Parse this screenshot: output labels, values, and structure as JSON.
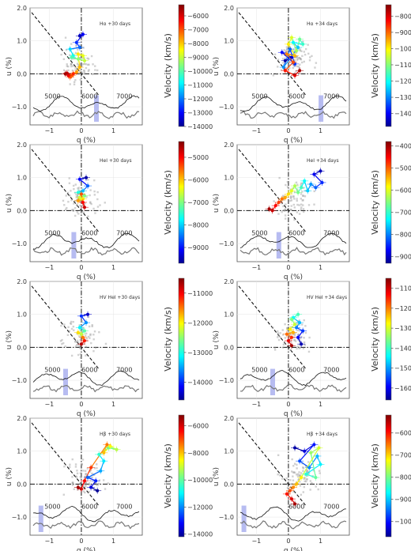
{
  "chart_data": [
    {
      "type": "scatter",
      "title": "Hα +30 days",
      "xlabel": "q (%)",
      "ylabel": "u (%)",
      "cbar_label": "Velocity (km/s)",
      "xlim": [
        -1.6,
        1.9
      ],
      "ylim": [
        -1.55,
        2.0
      ],
      "x_ticks": [
        "−1",
        "0",
        "1"
      ],
      "y_ticks": [
        "2.0",
        "1.0",
        "0.0",
        "−1.0"
      ],
      "cbar_range": [
        -14000,
        -5200
      ],
      "cbar_ticks": [
        "−6000",
        "−7000",
        "−8000",
        "−9000",
        "−10000",
        "−11000",
        "−12000",
        "−13000",
        "−14000"
      ],
      "wavelength_labels": [
        "5000",
        "6000",
        "7000"
      ],
      "dominant_axis_slope": -1.2,
      "band_position": 0.6,
      "cluster_center": [
        -0.1,
        0.3
      ],
      "points": [
        {
          "q": -0.05,
          "u": 1.15,
          "v": -13500
        },
        {
          "q": 0.05,
          "u": 1.2,
          "v": -13000
        },
        {
          "q": -0.15,
          "u": 0.95,
          "v": -12500
        },
        {
          "q": -0.05,
          "u": 0.8,
          "v": -12000
        },
        {
          "q": -0.35,
          "u": 0.75,
          "v": -11000
        },
        {
          "q": -0.25,
          "u": 0.55,
          "v": -10500
        },
        {
          "q": -0.3,
          "u": 0.5,
          "v": -10000
        },
        {
          "q": -0.1,
          "u": 0.45,
          "v": -9500
        },
        {
          "q": 0.1,
          "u": 0.4,
          "v": -9000
        },
        {
          "q": 0.05,
          "u": 0.55,
          "v": -8700
        },
        {
          "q": -0.1,
          "u": 0.6,
          "v": -8300
        },
        {
          "q": -0.05,
          "u": 0.2,
          "v": -7900
        },
        {
          "q": -0.15,
          "u": 0.05,
          "v": -7600
        },
        {
          "q": -0.3,
          "u": -0.05,
          "v": -7300
        },
        {
          "q": -0.35,
          "u": -0.1,
          "v": -7000
        },
        {
          "q": -0.25,
          "u": 0.0,
          "v": -6600
        },
        {
          "q": -0.4,
          "u": -0.05,
          "v": -6200
        },
        {
          "q": -0.45,
          "u": 0.02,
          "v": -5800
        },
        {
          "q": -0.5,
          "u": 0.0,
          "v": -5500
        }
      ]
    },
    {
      "type": "scatter",
      "title": "Hα +34 days",
      "xlabel": "q (%)",
      "ylabel": "u (%)",
      "cbar_label": "Velocity (km/s)",
      "xlim": [
        -1.6,
        1.9
      ],
      "ylim": [
        -1.55,
        2.0
      ],
      "x_ticks": [
        "−1",
        "0",
        "1"
      ],
      "y_ticks": [
        "2.0",
        "1.0",
        "0.0",
        "−1.0"
      ],
      "cbar_range": [
        -14800,
        -7300
      ],
      "cbar_ticks": [
        "−8000",
        "−9000",
        "−10000",
        "−11000",
        "−12000",
        "−13000",
        "−14000"
      ],
      "wavelength_labels": [
        "5000",
        "6000",
        "7000"
      ],
      "dominant_axis_slope": -1.2,
      "band_position": 0.77,
      "cluster_center": [
        0.15,
        0.45
      ],
      "points": [
        {
          "q": -0.1,
          "u": 0.4,
          "v": -14500
        },
        {
          "q": 0.1,
          "u": 0.5,
          "v": -14200
        },
        {
          "q": -0.2,
          "u": 0.65,
          "v": -13800
        },
        {
          "q": 0.2,
          "u": 0.3,
          "v": -13500
        },
        {
          "q": 0.05,
          "u": 0.75,
          "v": -13100
        },
        {
          "q": -0.15,
          "u": 0.2,
          "v": -12800
        },
        {
          "q": 0.3,
          "u": 0.8,
          "v": -12400
        },
        {
          "q": 0.15,
          "u": 0.95,
          "v": -12000
        },
        {
          "q": 0.45,
          "u": 0.9,
          "v": -11600
        },
        {
          "q": 0.35,
          "u": 1.05,
          "v": -11200
        },
        {
          "q": 0.25,
          "u": 0.7,
          "v": -10800
        },
        {
          "q": 0.1,
          "u": 1.1,
          "v": -10400
        },
        {
          "q": 0.0,
          "u": 0.9,
          "v": -10000
        },
        {
          "q": 0.2,
          "u": 0.55,
          "v": -9600
        },
        {
          "q": -0.05,
          "u": 0.6,
          "v": -9200
        },
        {
          "q": 0.15,
          "u": 0.35,
          "v": -8800
        },
        {
          "q": -0.1,
          "u": 0.1,
          "v": -8400
        },
        {
          "q": 0.2,
          "u": -0.05,
          "v": -8000
        },
        {
          "q": 0.35,
          "u": 0.1,
          "v": -7600
        }
      ]
    },
    {
      "type": "scatter",
      "title": "HeI +30 days",
      "xlabel": "q (%)",
      "ylabel": "u (%)",
      "cbar_label": "Velocity (km/s)",
      "xlim": [
        -1.6,
        1.9
      ],
      "ylim": [
        -1.55,
        2.0
      ],
      "x_ticks": [
        "−1",
        "0",
        "1"
      ],
      "y_ticks": [
        "2.0",
        "1.0",
        "0.0",
        "−1.0"
      ],
      "cbar_range": [
        -9700,
        -4300
      ],
      "cbar_ticks": [
        "−5000",
        "−6000",
        "−7000",
        "−8000",
        "−9000"
      ],
      "wavelength_labels": [
        "5000",
        "6000",
        "7000"
      ],
      "dominant_axis_slope": -1.2,
      "band_position": 0.38,
      "cluster_center": [
        0.0,
        0.3
      ],
      "points": [
        {
          "q": 0.15,
          "u": 1.0,
          "v": -9500
        },
        {
          "q": -0.05,
          "u": 0.95,
          "v": -9000
        },
        {
          "q": 0.2,
          "u": 0.75,
          "v": -8500
        },
        {
          "q": 0.05,
          "u": 0.6,
          "v": -8000
        },
        {
          "q": -0.1,
          "u": 0.55,
          "v": -7500
        },
        {
          "q": 0.1,
          "u": 0.45,
          "v": -7000
        },
        {
          "q": -0.05,
          "u": 0.4,
          "v": -6600
        },
        {
          "q": 0.05,
          "u": 0.35,
          "v": -6200
        },
        {
          "q": -0.1,
          "u": 0.3,
          "v": -5800
        },
        {
          "q": 0.0,
          "u": 0.5,
          "v": -5400
        },
        {
          "q": 0.05,
          "u": 0.25,
          "v": -5000
        },
        {
          "q": 0.1,
          "u": 0.1,
          "v": -4700
        }
      ]
    },
    {
      "type": "scatter",
      "title": "HeI +34 days",
      "xlabel": "q (%)",
      "ylabel": "u (%)",
      "cbar_label": "Velocity (km/s)",
      "xlim": [
        -1.6,
        1.9
      ],
      "ylim": [
        -1.55,
        2.0
      ],
      "x_ticks": [
        "−1",
        "0",
        "1"
      ],
      "y_ticks": [
        "2.0",
        "1.0",
        "0.0",
        "−1.0"
      ],
      "cbar_range": [
        -9300,
        -3800
      ],
      "cbar_ticks": [
        "−4000",
        "−5000",
        "−6000",
        "−7000",
        "−8000",
        "−9000"
      ],
      "wavelength_labels": [
        "5000",
        "6000",
        "7000"
      ],
      "dominant_axis_slope": -1.2,
      "band_position": 0.36,
      "cluster_center": [
        0.2,
        0.4
      ],
      "points": [
        {
          "q": 1.0,
          "u": 1.2,
          "v": -9000
        },
        {
          "q": 0.8,
          "u": 1.1,
          "v": -8700
        },
        {
          "q": 1.05,
          "u": 0.85,
          "v": -8400
        },
        {
          "q": 0.85,
          "u": 0.7,
          "v": -8100
        },
        {
          "q": 0.7,
          "u": 0.8,
          "v": -7800
        },
        {
          "q": 0.6,
          "u": 0.6,
          "v": -7500
        },
        {
          "q": 0.5,
          "u": 0.9,
          "v": -7200
        },
        {
          "q": 0.4,
          "u": 0.7,
          "v": -6900
        },
        {
          "q": 0.3,
          "u": 0.55,
          "v": -6600
        },
        {
          "q": 0.2,
          "u": 0.75,
          "v": -6300
        },
        {
          "q": 0.1,
          "u": 0.6,
          "v": -6000
        },
        {
          "q": 0.0,
          "u": 0.5,
          "v": -5700
        },
        {
          "q": -0.1,
          "u": 0.4,
          "v": -5400
        },
        {
          "q": -0.2,
          "u": 0.35,
          "v": -5100
        },
        {
          "q": -0.3,
          "u": 0.25,
          "v": -4800
        },
        {
          "q": -0.4,
          "u": 0.15,
          "v": -4500
        },
        {
          "q": -0.5,
          "u": 0.0,
          "v": -4200
        },
        {
          "q": -0.6,
          "u": 0.05,
          "v": -4000
        }
      ]
    },
    {
      "type": "scatter",
      "title": "HV HeI +30 days",
      "xlabel": "q (%)",
      "ylabel": "u (%)",
      "cbar_label": "Velocity (km/s)",
      "xlim": [
        -1.6,
        1.9
      ],
      "ylim": [
        -1.55,
        2.0
      ],
      "x_ticks": [
        "−1",
        "0",
        "1"
      ],
      "y_ticks": [
        "2.0",
        "1.0",
        "0.0",
        "−1.0"
      ],
      "cbar_range": [
        -14600,
        -10500
      ],
      "cbar_ticks": [
        "−11000",
        "−12000",
        "−13000",
        "−14000"
      ],
      "wavelength_labels": [
        "5000",
        "6000",
        "7000"
      ],
      "dominant_axis_slope": -1.2,
      "band_position": 0.3,
      "cluster_center": [
        0.0,
        0.3
      ],
      "points": [
        {
          "q": 0.2,
          "u": 1.0,
          "v": -14300
        },
        {
          "q": 0.0,
          "u": 0.95,
          "v": -13900
        },
        {
          "q": 0.15,
          "u": 0.75,
          "v": -13500
        },
        {
          "q": -0.05,
          "u": 0.6,
          "v": -13100
        },
        {
          "q": 0.1,
          "u": 0.5,
          "v": -12700
        },
        {
          "q": 0.0,
          "u": 0.4,
          "v": -12300
        },
        {
          "q": -0.1,
          "u": 0.45,
          "v": -11900
        },
        {
          "q": 0.05,
          "u": 0.3,
          "v": -11500
        },
        {
          "q": 0.1,
          "u": 0.2,
          "v": -11100
        },
        {
          "q": 0.0,
          "u": 0.1,
          "v": -10700
        }
      ]
    },
    {
      "type": "scatter",
      "title": "HV HeI +34 days",
      "xlabel": "q (%)",
      "ylabel": "u (%)",
      "cbar_label": "Velocity (km/s)",
      "xlim": [
        -1.6,
        1.9
      ],
      "ylim": [
        -1.55,
        2.0
      ],
      "x_ticks": [
        "−1",
        "0",
        "1"
      ],
      "y_ticks": [
        "2.0",
        "1.0",
        "0.0",
        "−1.0"
      ],
      "cbar_range": [
        -16600,
        -10500
      ],
      "cbar_ticks": [
        "−11000",
        "−12000",
        "−13000",
        "−14000",
        "−15000",
        "−16000"
      ],
      "wavelength_labels": [
        "5000",
        "6000",
        "7000"
      ],
      "dominant_axis_slope": -1.2,
      "band_position": 0.3,
      "cluster_center": [
        0.15,
        0.35
      ],
      "points": [
        {
          "q": 0.4,
          "u": 0.1,
          "v": -16300
        },
        {
          "q": 0.3,
          "u": 0.3,
          "v": -15900
        },
        {
          "q": 0.45,
          "u": 0.5,
          "v": -15500
        },
        {
          "q": 0.25,
          "u": 0.6,
          "v": -15100
        },
        {
          "q": 0.35,
          "u": 0.75,
          "v": -14700
        },
        {
          "q": 0.15,
          "u": 0.9,
          "v": -14300
        },
        {
          "q": 0.3,
          "u": 1.0,
          "v": -13900
        },
        {
          "q": 0.1,
          "u": 0.85,
          "v": -13500
        },
        {
          "q": 0.2,
          "u": 0.7,
          "v": -13100
        },
        {
          "q": 0.05,
          "u": 0.55,
          "v": -12700
        },
        {
          "q": 0.15,
          "u": 0.45,
          "v": -12300
        },
        {
          "q": -0.05,
          "u": 0.4,
          "v": -11900
        },
        {
          "q": 0.1,
          "u": 0.3,
          "v": -11500
        },
        {
          "q": 0.0,
          "u": 0.2,
          "v": -11100
        },
        {
          "q": 0.1,
          "u": 0.05,
          "v": -10700
        }
      ]
    },
    {
      "type": "scatter",
      "title": "Hβ +30 days",
      "xlabel": "q (%)",
      "ylabel": "u (%)",
      "cbar_label": "Velocity (km/s)",
      "xlim": [
        -1.6,
        1.9
      ],
      "ylim": [
        -1.55,
        2.0
      ],
      "x_ticks": [
        "−1",
        "0",
        "1"
      ],
      "y_ticks": [
        "2.0",
        "1.0",
        "0.0",
        "−1.0"
      ],
      "cbar_range": [
        -14200,
        -5200
      ],
      "cbar_ticks": [
        "−6000",
        "−8000",
        "−10000",
        "−12000",
        "−14000"
      ],
      "wavelength_labels": [
        "5000",
        "6000",
        "7000"
      ],
      "dominant_axis_slope": -1.2,
      "band_position": 0.06,
      "cluster_center": [
        0.1,
        0.2
      ],
      "points": [
        {
          "q": 0.5,
          "u": -0.2,
          "v": -14000
        },
        {
          "q": 0.3,
          "u": -0.1,
          "v": -13400
        },
        {
          "q": 0.45,
          "u": 0.1,
          "v": -12800
        },
        {
          "q": 0.2,
          "u": 0.2,
          "v": -12200
        },
        {
          "q": 0.6,
          "u": 0.4,
          "v": -11600
        },
        {
          "q": 0.7,
          "u": 0.7,
          "v": -11000
        },
        {
          "q": 0.55,
          "u": 0.9,
          "v": -10400
        },
        {
          "q": 0.85,
          "u": 1.1,
          "v": -9800
        },
        {
          "q": 1.1,
          "u": 1.05,
          "v": -9200
        },
        {
          "q": 0.9,
          "u": 1.15,
          "v": -8600
        },
        {
          "q": 0.7,
          "u": 0.95,
          "v": -8000
        },
        {
          "q": 0.8,
          "u": 1.2,
          "v": -7400
        },
        {
          "q": 0.3,
          "u": 0.5,
          "v": -6800
        },
        {
          "q": 0.1,
          "u": 0.1,
          "v": -6300
        },
        {
          "q": 0.0,
          "u": -0.15,
          "v": -5900
        },
        {
          "q": -0.1,
          "u": -0.1,
          "v": -5500
        }
      ]
    },
    {
      "type": "scatter",
      "title": "Hβ +34 days",
      "xlabel": "q (%)",
      "ylabel": "u (%)",
      "cbar_label": "Velocity (km/s)",
      "xlim": [
        -1.6,
        1.9
      ],
      "ylim": [
        -1.55,
        2.0
      ],
      "x_ticks": [
        "−1",
        "0",
        "1"
      ],
      "y_ticks": [
        "2.0",
        "1.0",
        "0.0",
        "−1.0"
      ],
      "cbar_range": [
        -10700,
        -5200
      ],
      "cbar_ticks": [
        "−6000",
        "−7000",
        "−8000",
        "−9000",
        "−10000"
      ],
      "wavelength_labels": [
        "6000",
        "7000"
      ],
      "dominant_axis_slope": -1.2,
      "band_position": 0.02,
      "cluster_center": [
        0.3,
        0.3
      ],
      "points": [
        {
          "q": 0.2,
          "u": 1.1,
          "v": -10500
        },
        {
          "q": 0.5,
          "u": 1.0,
          "v": -10200
        },
        {
          "q": 0.8,
          "u": 1.2,
          "v": -9900
        },
        {
          "q": 0.35,
          "u": 0.7,
          "v": -9600
        },
        {
          "q": 0.65,
          "u": 0.5,
          "v": -9300
        },
        {
          "q": 0.9,
          "u": 0.85,
          "v": -9000
        },
        {
          "q": 1.0,
          "u": 0.6,
          "v": -8700
        },
        {
          "q": 0.55,
          "u": 0.3,
          "v": -8400
        },
        {
          "q": 0.85,
          "u": 0.2,
          "v": -8100
        },
        {
          "q": 0.7,
          "u": 0.95,
          "v": -7800
        },
        {
          "q": 0.95,
          "u": 1.1,
          "v": -7500
        },
        {
          "q": 0.4,
          "u": 0.2,
          "v": -7200
        },
        {
          "q": 0.25,
          "u": 0.0,
          "v": -6900
        },
        {
          "q": 0.15,
          "u": -0.1,
          "v": -6600
        },
        {
          "q": 0.05,
          "u": -0.2,
          "v": -6300
        },
        {
          "q": -0.05,
          "u": -0.3,
          "v": -6000
        },
        {
          "q": 0.1,
          "u": -0.45,
          "v": -5700
        },
        {
          "q": 0.2,
          "u": -0.6,
          "v": -5400
        }
      ]
    }
  ]
}
